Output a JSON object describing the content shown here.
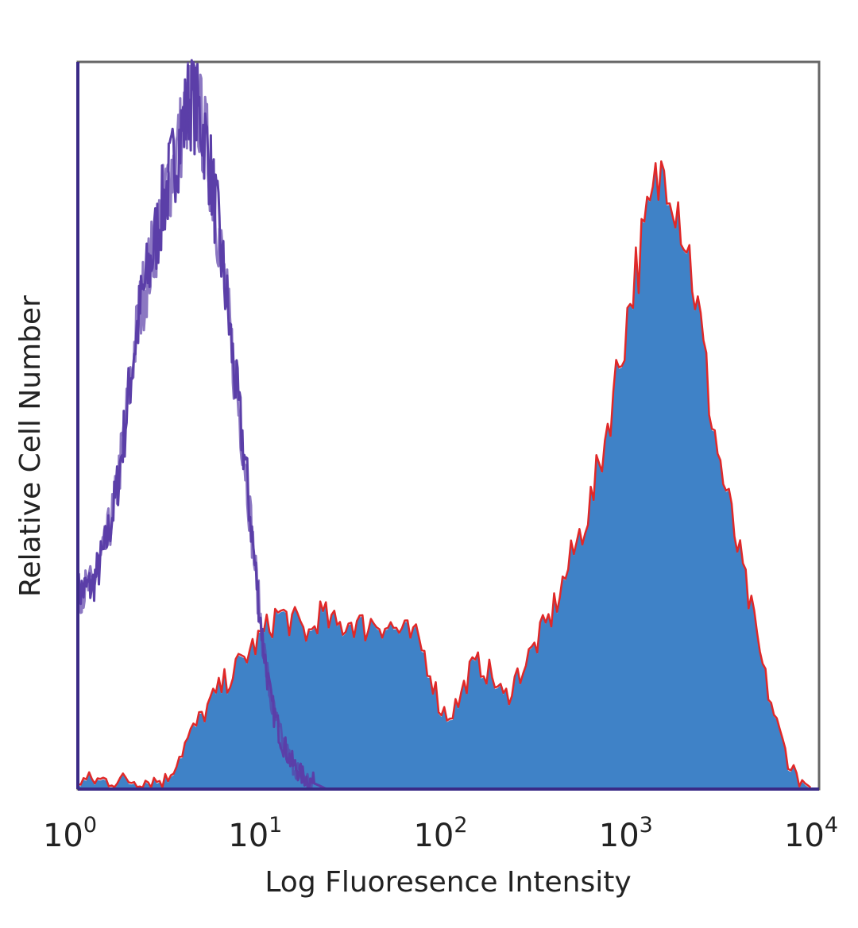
{
  "chart_data": {
    "type": "area",
    "xlabel": "Log Fluoresence Intensity",
    "ylabel": "Relative Cell Number",
    "x_scale": "log",
    "xlim": [
      1,
      10000
    ],
    "ylim": [
      0,
      100
    ],
    "grid": false,
    "x_ticks": [
      {
        "base": "10",
        "exp": "0",
        "value": 1
      },
      {
        "base": "10",
        "exp": "1",
        "value": 10
      },
      {
        "base": "10",
        "exp": "2",
        "value": 100
      },
      {
        "base": "10",
        "exp": "3",
        "value": 1000
      },
      {
        "base": "10",
        "exp": "4",
        "value": 10000
      }
    ],
    "series": [
      {
        "style": "outline",
        "color": "#5b3fa8",
        "x": [
          1,
          1.2,
          1.4,
          1.6,
          1.8,
          2,
          2.2,
          2.5,
          2.8,
          3.2,
          3.6,
          4,
          4.5,
          5,
          5.6,
          6.3,
          7,
          8,
          9,
          10,
          11,
          12.5,
          14,
          16,
          18,
          20,
          22
        ],
        "y": [
          27,
          28,
          33,
          40,
          50,
          60,
          67,
          73,
          79,
          85,
          90,
          95,
          93,
          88,
          79,
          68,
          57,
          45,
          31,
          20,
          12,
          7,
          4,
          2,
          1,
          0.5,
          0
        ]
      },
      {
        "style": "filled",
        "color": "#3f82c7",
        "outline_color": "#e02828",
        "x": [
          1,
          3,
          3.3,
          4,
          5,
          6,
          7,
          8,
          10,
          12,
          14,
          16,
          18,
          20,
          25,
          30,
          35,
          40,
          50,
          60,
          70,
          80,
          90,
          100,
          115,
          130,
          150,
          175,
          200,
          230,
          260,
          300,
          350,
          400,
          500,
          600,
          700,
          800,
          900,
          1000,
          1150,
          1300,
          1500,
          1750,
          2000,
          2300,
          2600,
          3000,
          3500,
          4000,
          4500,
          5000,
          6000,
          7000,
          8000,
          9000
        ],
        "y": [
          1,
          1,
          3,
          7,
          11,
          14,
          16,
          18,
          21,
          24,
          23,
          22,
          21,
          24,
          22,
          23,
          22,
          23,
          22,
          21,
          20,
          16,
          11,
          10,
          12,
          16,
          17,
          15,
          12,
          15,
          17,
          20,
          23,
          27,
          34,
          40,
          48,
          56,
          63,
          70,
          76,
          82,
          86,
          80,
          73,
          63,
          52,
          43,
          35,
          28,
          22,
          16,
          8,
          3,
          1,
          0
        ]
      }
    ]
  }
}
